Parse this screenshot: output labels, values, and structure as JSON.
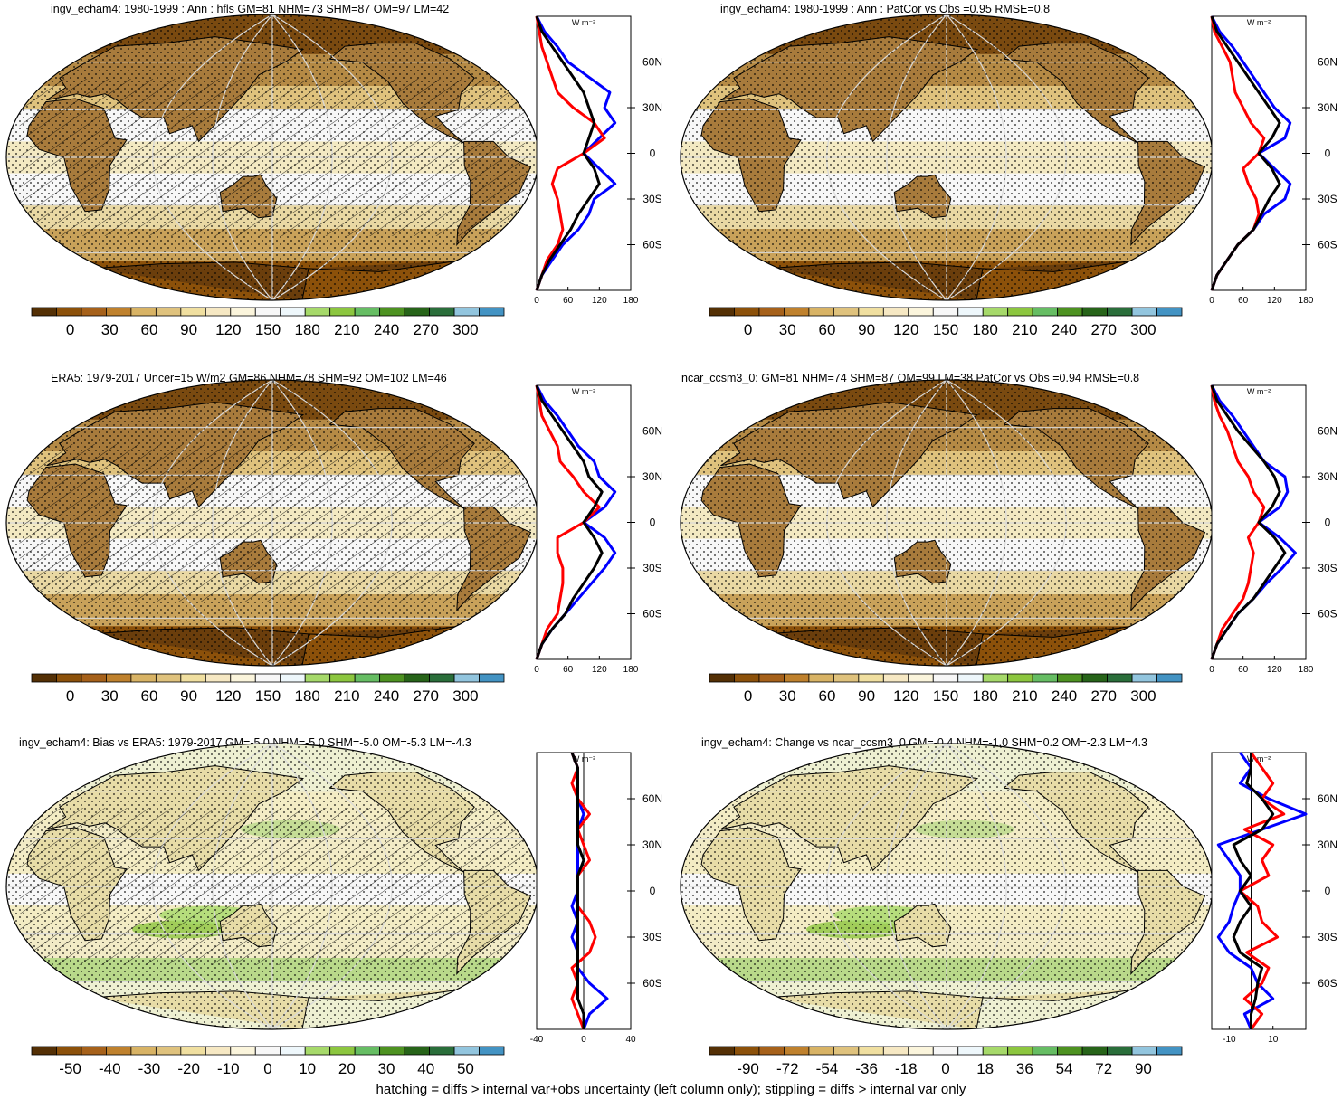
{
  "colors": {
    "continent_outline": "#000000",
    "graticule": "#d9d9d9",
    "profile_series": [
      "#0000ff",
      "#ff0000",
      "#000000"
    ]
  },
  "footer": "hatching = diffs > internal var+obs uncertainty (left column only); stippling = diffs > internal var only",
  "chart_data": [
    {
      "type": "heatmap",
      "title": "ingv_echam4: 1980-1999 : Ann : hfls GM=81 NHM=73 SHM=87 OM=97 LM=42",
      "colorbar": {
        "tick_labels": [
          "0",
          "30",
          "60",
          "90",
          "120",
          "150",
          "180",
          "210",
          "240",
          "270",
          "300"
        ],
        "colors": [
          "#543005",
          "#8c510a",
          "#a6611a",
          "#bf812d",
          "#d8b365",
          "#dfc27d",
          "#f0dfa0",
          "#f6e8c3",
          "#fbf5dc",
          "#f7f7f7",
          "#eef7fb",
          "#a6d96a",
          "#8cc63f",
          "#66bd63",
          "#4d9221",
          "#276419",
          "#2a6e3a",
          "#92c5de",
          "#4393c3"
        ]
      },
      "profile": {
        "unit": "W m⁻²",
        "xticks": [
          "0",
          "60",
          "120",
          "180"
        ],
        "xlim": [
          0,
          180
        ],
        "ylim": [
          -90,
          90
        ],
        "yticks": [
          "60N",
          "30N",
          "0",
          "30S",
          "60S"
        ],
        "lat": [
          -90,
          -80,
          -70,
          -60,
          -50,
          -40,
          -30,
          -20,
          -10,
          0,
          10,
          20,
          30,
          40,
          50,
          60,
          70,
          80,
          90
        ],
        "series": [
          {
            "values": [
              0,
              10,
              30,
              50,
              80,
              100,
              110,
              150,
              120,
              90,
              120,
              150,
              130,
              140,
              100,
              60,
              40,
              15,
              0
            ]
          },
          {
            "values": [
              0,
              10,
              20,
              40,
              50,
              45,
              40,
              30,
              40,
              90,
              130,
              110,
              70,
              40,
              30,
              20,
              10,
              5,
              0
            ]
          },
          {
            "values": [
              0,
              10,
              25,
              45,
              65,
              80,
              100,
              120,
              110,
              90,
              100,
              110,
              100,
              90,
              70,
              50,
              30,
              10,
              0
            ]
          }
        ]
      }
    },
    {
      "type": "heatmap",
      "title": "ingv_echam4: 1980-1999 : Ann : PatCor vs Obs =0.95 RMSE=0.8",
      "colorbar": {
        "tick_labels": [
          "0",
          "30",
          "60",
          "90",
          "120",
          "150",
          "180",
          "210",
          "240",
          "270",
          "300"
        ],
        "colors": [
          "#543005",
          "#8c510a",
          "#a6611a",
          "#bf812d",
          "#d8b365",
          "#dfc27d",
          "#f0dfa0",
          "#f6e8c3",
          "#fbf5dc",
          "#f7f7f7",
          "#eef7fb",
          "#a6d96a",
          "#8cc63f",
          "#66bd63",
          "#4d9221",
          "#276419",
          "#2a6e3a",
          "#92c5de",
          "#4393c3"
        ]
      },
      "profile": {
        "unit": "W m⁻²",
        "xticks": [
          "0",
          "60",
          "120",
          "180"
        ],
        "xlim": [
          0,
          180
        ],
        "ylim": [
          -90,
          90
        ],
        "yticks": [
          "60N",
          "30N",
          "0",
          "30S",
          "60S"
        ],
        "lat": [
          -90,
          -80,
          -70,
          -60,
          -50,
          -40,
          -30,
          -20,
          -10,
          0,
          10,
          20,
          30,
          40,
          50,
          60,
          70,
          80,
          90
        ],
        "series": [
          {
            "values": [
              0,
              10,
              30,
              50,
              80,
              100,
              140,
              150,
              120,
              90,
              140,
              150,
              120,
              100,
              80,
              60,
              40,
              15,
              0
            ]
          },
          {
            "values": [
              0,
              10,
              30,
              50,
              80,
              90,
              85,
              70,
              60,
              90,
              100,
              75,
              60,
              45,
              40,
              35,
              20,
              5,
              0
            ]
          },
          {
            "values": [
              0,
              10,
              30,
              50,
              80,
              95,
              110,
              130,
              115,
              90,
              115,
              130,
              110,
              90,
              70,
              50,
              30,
              10,
              0
            ]
          }
        ]
      }
    },
    {
      "type": "heatmap",
      "title": "ERA5: 1979-2017 Uncer=15 W/m2 GM=86 NHM=78 SHM=92 OM=102 LM=46",
      "colorbar": {
        "tick_labels": [
          "0",
          "30",
          "60",
          "90",
          "120",
          "150",
          "180",
          "210",
          "240",
          "270",
          "300"
        ],
        "colors": [
          "#543005",
          "#8c510a",
          "#a6611a",
          "#bf812d",
          "#d8b365",
          "#dfc27d",
          "#f0dfa0",
          "#f6e8c3",
          "#fbf5dc",
          "#f7f7f7",
          "#eef7fb",
          "#a6d96a",
          "#8cc63f",
          "#66bd63",
          "#4d9221",
          "#276419",
          "#2a6e3a",
          "#92c5de",
          "#4393c3"
        ]
      },
      "profile": {
        "unit": "W m⁻²",
        "xticks": [
          "0",
          "60",
          "120",
          "180"
        ],
        "xlim": [
          0,
          180
        ],
        "ylim": [
          -90,
          90
        ],
        "yticks": [
          "60N",
          "30N",
          "0",
          "30S",
          "60S"
        ],
        "lat": [
          -90,
          -80,
          -70,
          -60,
          -50,
          -40,
          -30,
          -20,
          -10,
          0,
          10,
          20,
          30,
          40,
          50,
          60,
          70,
          80,
          90
        ],
        "series": [
          {
            "values": [
              0,
              10,
              30,
              55,
              80,
              105,
              130,
              150,
              130,
              90,
              130,
              150,
              120,
              110,
              80,
              60,
              40,
              15,
              0
            ]
          },
          {
            "values": [
              0,
              10,
              20,
              40,
              45,
              50,
              50,
              40,
              40,
              90,
              120,
              90,
              70,
              45,
              40,
              25,
              10,
              5,
              0
            ]
          },
          {
            "values": [
              0,
              10,
              30,
              55,
              70,
              90,
              110,
              125,
              110,
              90,
              110,
              125,
              100,
              90,
              70,
              50,
              30,
              10,
              0
            ]
          }
        ]
      }
    },
    {
      "type": "heatmap",
      "title": "ncar_ccsm3_0: GM=81 NHM=74 SHM=87 OM=99 LM=38 PatCor vs Obs =0.94 RMSE=0.8",
      "colorbar": {
        "tick_labels": [
          "0",
          "30",
          "60",
          "90",
          "120",
          "150",
          "180",
          "210",
          "240",
          "270",
          "300"
        ],
        "colors": [
          "#543005",
          "#8c510a",
          "#a6611a",
          "#bf812d",
          "#d8b365",
          "#dfc27d",
          "#f0dfa0",
          "#f6e8c3",
          "#fbf5dc",
          "#f7f7f7",
          "#eef7fb",
          "#a6d96a",
          "#8cc63f",
          "#66bd63",
          "#4d9221",
          "#276419",
          "#2a6e3a",
          "#92c5de",
          "#4393c3"
        ]
      },
      "profile": {
        "unit": "W m⁻²",
        "xticks": [
          "0",
          "60",
          "120",
          "180"
        ],
        "xlim": [
          0,
          180
        ],
        "ylim": [
          -90,
          90
        ],
        "yticks": [
          "60N",
          "30N",
          "0",
          "30S",
          "60S"
        ],
        "lat": [
          -90,
          -80,
          -70,
          -60,
          -50,
          -40,
          -30,
          -20,
          -10,
          0,
          10,
          20,
          30,
          40,
          50,
          60,
          70,
          80,
          90
        ],
        "series": [
          {
            "values": [
              0,
              10,
              30,
              50,
              80,
              105,
              135,
              160,
              130,
              90,
              130,
              145,
              140,
              100,
              80,
              60,
              40,
              15,
              0
            ]
          },
          {
            "values": [
              0,
              10,
              20,
              40,
              60,
              70,
              75,
              80,
              70,
              90,
              100,
              80,
              70,
              50,
              40,
              30,
              15,
              5,
              0
            ]
          },
          {
            "values": [
              0,
              10,
              30,
              50,
              80,
              100,
              120,
              140,
              120,
              90,
              115,
              130,
              120,
              100,
              75,
              50,
              30,
              10,
              0
            ]
          }
        ]
      }
    },
    {
      "type": "heatmap",
      "title": "ingv_echam4: Bias vs ERA5: 1979-2017 GM=-5.0 NHM=-5.0 SHM=-5.0 OM=-5.3 LM=-4.3",
      "colorbar": {
        "tick_labels": [
          "-50",
          "-40",
          "-30",
          "-20",
          "-10",
          "0",
          "10",
          "20",
          "30",
          "40",
          "50"
        ],
        "colors": [
          "#543005",
          "#8c510a",
          "#a6611a",
          "#bf812d",
          "#d8b365",
          "#dfc27d",
          "#f0dfa0",
          "#f6e8c3",
          "#fbf5dc",
          "#f7f7f7",
          "#eef7fb",
          "#a6d96a",
          "#8cc63f",
          "#66bd63",
          "#4d9221",
          "#276419",
          "#2a6e3a",
          "#92c5de",
          "#4393c3"
        ]
      },
      "profile": {
        "unit": "W m⁻²",
        "xticks": [
          "-40",
          "0",
          "40"
        ],
        "xlim": [
          -40,
          40
        ],
        "ylim": [
          -90,
          90
        ],
        "yticks": [
          "60N",
          "30N",
          "0",
          "30S",
          "60S"
        ],
        "lat": [
          -90,
          -80,
          -70,
          -60,
          -50,
          -40,
          -30,
          -20,
          -10,
          0,
          10,
          20,
          30,
          40,
          50,
          60,
          70,
          80,
          90
        ],
        "series": [
          {
            "values": [
              0,
              5,
              20,
              5,
              -5,
              -5,
              -10,
              -5,
              -10,
              -5,
              -5,
              -5,
              -5,
              -5,
              0,
              -5,
              -5,
              -5,
              -10
            ]
          },
          {
            "values": [
              0,
              -5,
              -10,
              -5,
              -10,
              5,
              10,
              5,
              -5,
              -5,
              -5,
              5,
              0,
              -5,
              5,
              -5,
              -10,
              -5,
              -10
            ]
          },
          {
            "values": [
              0,
              0,
              -5,
              -5,
              -5,
              -5,
              -5,
              -5,
              -5,
              -5,
              -5,
              0,
              -5,
              -5,
              -5,
              -5,
              -5,
              -5,
              -10
            ]
          }
        ]
      }
    },
    {
      "type": "heatmap",
      "title": "ingv_echam4: Change vs ncar_ccsm3_0 GM=-0.4 NHM=-1.0 SHM=0.2 OM=-2.3 LM=4.3",
      "colorbar": {
        "tick_labels": [
          "-90",
          "-72",
          "-54",
          "-36",
          "-18",
          "0",
          "18",
          "36",
          "54",
          "72",
          "90"
        ],
        "colors": [
          "#543005",
          "#8c510a",
          "#a6611a",
          "#bf812d",
          "#d8b365",
          "#dfc27d",
          "#f0dfa0",
          "#f6e8c3",
          "#fbf5dc",
          "#f7f7f7",
          "#eef7fb",
          "#a6d96a",
          "#8cc63f",
          "#66bd63",
          "#4d9221",
          "#276419",
          "#2a6e3a",
          "#92c5de",
          "#4393c3"
        ]
      },
      "profile": {
        "unit": "W m⁻²",
        "xticks": [
          "-10",
          "10"
        ],
        "xlim": [
          -18,
          25
        ],
        "ylim": [
          -90,
          90
        ],
        "yticks": [
          "60N",
          "30N",
          "0",
          "30S",
          "60S"
        ],
        "lat": [
          -90,
          -80,
          -70,
          -60,
          -50,
          -40,
          -30,
          -20,
          -10,
          0,
          10,
          20,
          30,
          40,
          50,
          60,
          70,
          80,
          90
        ],
        "series": [
          {
            "values": [
              0,
              -3,
              10,
              3,
              0,
              -10,
              -15,
              -10,
              -8,
              -5,
              -5,
              -10,
              -15,
              5,
              25,
              8,
              -5,
              0,
              -5
            ]
          },
          {
            "values": [
              0,
              5,
              -3,
              5,
              8,
              -2,
              12,
              5,
              3,
              -5,
              8,
              5,
              10,
              -3,
              15,
              5,
              10,
              5,
              0
            ]
          },
          {
            "values": [
              0,
              0,
              2,
              3,
              5,
              -5,
              -8,
              -5,
              0,
              -5,
              0,
              -5,
              -8,
              5,
              10,
              5,
              -2,
              0,
              0
            ]
          }
        ]
      }
    }
  ]
}
